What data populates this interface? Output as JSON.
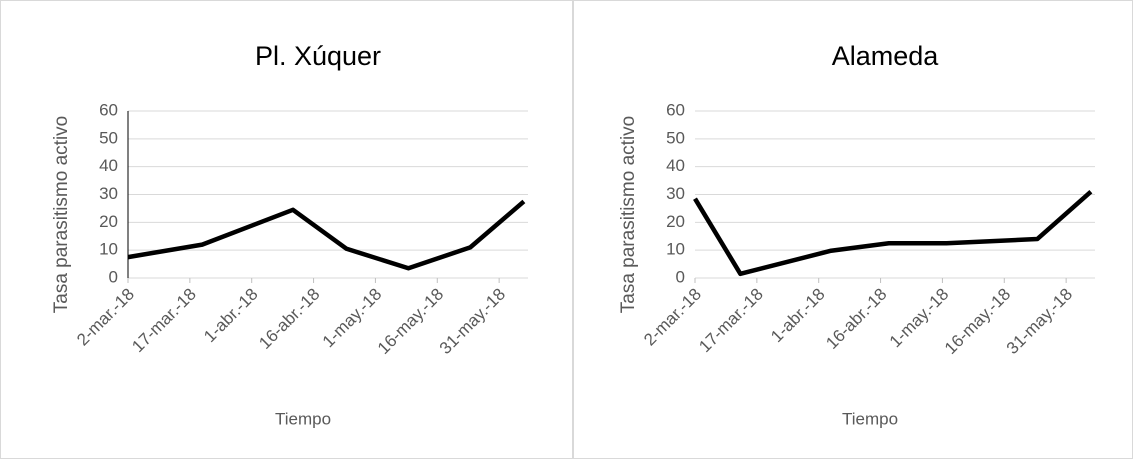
{
  "chart_data": [
    {
      "type": "line",
      "title": "Pl. Xúquer",
      "x_label": "Tiempo",
      "y_label": "Tasa parasitismo activo",
      "x": [
        "2018-03-02",
        "2018-03-20",
        "2018-04-11",
        "2018-04-24",
        "2018-05-09",
        "2018-05-24",
        "2018-06-06"
      ],
      "series": [
        {
          "name": "Pl. Xúquer",
          "color": "#000000",
          "values": [
            7.5,
            12,
            24.5,
            10.5,
            3.5,
            11,
            27.5
          ]
        }
      ],
      "xlim": [
        "2018-03-02",
        "2018-06-07"
      ],
      "xticks": [
        {
          "value": "2018-03-02",
          "label": "2-mar.-18"
        },
        {
          "value": "2018-03-17",
          "label": "17-mar.-18"
        },
        {
          "value": "2018-04-01",
          "label": "1-abr.-18"
        },
        {
          "value": "2018-04-16",
          "label": "16-abr.-18"
        },
        {
          "value": "2018-05-01",
          "label": "1-may.-18"
        },
        {
          "value": "2018-05-16",
          "label": "16-may.-18"
        },
        {
          "value": "2018-05-31",
          "label": "31-may.-18"
        }
      ],
      "ylim": [
        0,
        60
      ],
      "yticks": [
        0,
        10,
        20,
        30,
        40,
        50,
        60
      ],
      "grid": true,
      "y_axis_line": true
    },
    {
      "type": "line",
      "title": "Alameda",
      "x_label": "Tiempo",
      "y_label": "Tasa parasitismo activo",
      "x": [
        "2018-03-02",
        "2018-03-13",
        "2018-04-04",
        "2018-04-18",
        "2018-05-02",
        "2018-05-24",
        "2018-06-06"
      ],
      "series": [
        {
          "name": "Alameda",
          "color": "#000000",
          "values": [
            28.5,
            1.5,
            9.8,
            12.5,
            12.5,
            14,
            31
          ]
        }
      ],
      "xlim": [
        "2018-03-02",
        "2018-06-07"
      ],
      "xticks": [
        {
          "value": "2018-03-02",
          "label": "2-mar.-18"
        },
        {
          "value": "2018-03-17",
          "label": "17-mar.-18"
        },
        {
          "value": "2018-04-01",
          "label": "1-abr.-18"
        },
        {
          "value": "2018-04-16",
          "label": "16-abr.-18"
        },
        {
          "value": "2018-05-01",
          "label": "1-may.-18"
        },
        {
          "value": "2018-05-16",
          "label": "16-may.-18"
        },
        {
          "value": "2018-05-31",
          "label": "31-may.-18"
        }
      ],
      "ylim": [
        0,
        60
      ],
      "yticks": [
        0,
        10,
        20,
        30,
        40,
        50,
        60
      ],
      "grid": true,
      "y_axis_line": false
    }
  ]
}
